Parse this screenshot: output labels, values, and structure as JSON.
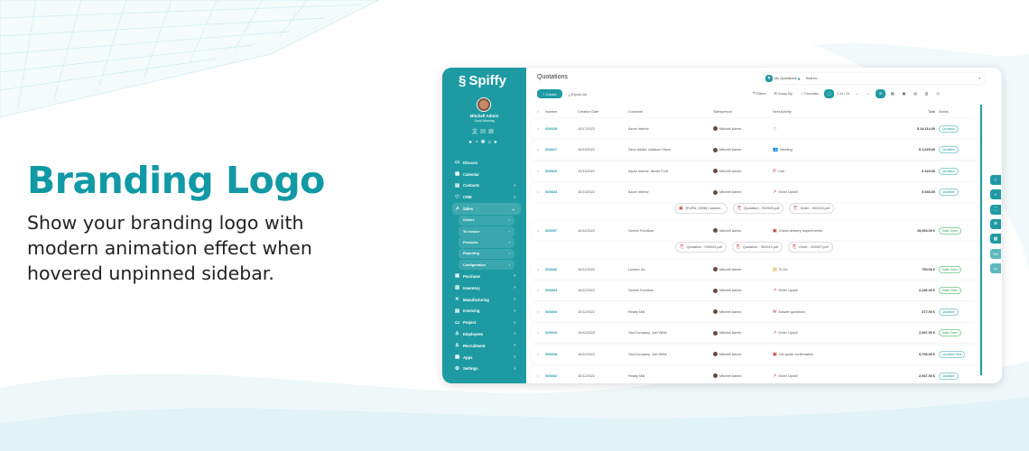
{
  "hero": {
    "title": "Branding Logo",
    "text": "Show your branding logo with modern animation effect when hovered unpinned sidebar."
  },
  "colors": {
    "accent": "#1e9ba2",
    "title": "#1199a5"
  },
  "sidebar": {
    "logo": "Spiffy",
    "user": "Mitchell Admin",
    "greeting": "Good Morning",
    "items": [
      {
        "label": "Discuss",
        "icon": "chat-icon"
      },
      {
        "label": "Calendar",
        "icon": "calendar-icon"
      },
      {
        "label": "Contacts",
        "icon": "contacts-icon",
        "arrow": true
      },
      {
        "label": "CRM",
        "icon": "handshake-icon",
        "arrow": true
      },
      {
        "label": "Sales",
        "icon": "chart-icon",
        "arrow": true,
        "open": true
      }
    ],
    "sub": [
      "Orders",
      "To Invoice",
      "Products",
      "Reporting",
      "Configuration"
    ],
    "items2": [
      {
        "label": "Purchase",
        "icon": "cart-icon"
      },
      {
        "label": "Inventory",
        "icon": "box-icon"
      },
      {
        "label": "Manufacturing",
        "icon": "tools-icon"
      },
      {
        "label": "Invoicing",
        "icon": "invoice-icon"
      },
      {
        "label": "Project",
        "icon": "project-icon"
      },
      {
        "label": "Employees",
        "icon": "people-icon"
      },
      {
        "label": "Recruitment",
        "icon": "recruit-icon"
      },
      {
        "label": "Apps",
        "icon": "apps-icon"
      },
      {
        "label": "Settings",
        "icon": "gear-icon"
      }
    ]
  },
  "main": {
    "title": "Quotations",
    "create": "+ Create",
    "export": "Export All",
    "facet": "My Quotations",
    "search_placeholder": "Search...",
    "filters": "Filters",
    "group_by": "Group By",
    "favorites": "Favorites",
    "pager": "1-11 / 11",
    "columns": [
      "Number",
      "Creation Date",
      "Customer",
      "Salesperson",
      "Next Activity",
      "Total",
      "Status"
    ],
    "rows": [
      {
        "type": "row",
        "number": "S00028",
        "date": "10/17/2022",
        "customer": "Azure Interior",
        "salesperson": "Mitchell Admin",
        "activity": "",
        "total": "$ 24,114.00",
        "status": "Quotation"
      },
      {
        "type": "row",
        "number": "S00027",
        "date": "10/13/2022",
        "customer": "Deco Addict, Addison Olson",
        "salesperson": "Mitchell Admin",
        "activity": "Meeting",
        "total": "$ 2,025.00",
        "status": "Quotation"
      },
      {
        "type": "row",
        "number": "S00026",
        "date": "10/13/2022",
        "customer": "Azure Interior, Nicole Ford",
        "salesperson": "Mitchell Admin",
        "activity": "Call",
        "total": "$ 320.00",
        "status": "Quotation"
      },
      {
        "type": "row",
        "number": "S00023",
        "date": "10/13/2022",
        "customer": "Azure Interior",
        "salesperson": "Mitchell Admin",
        "activity": "Order Upsell",
        "total": "$ 546.00",
        "status": "Quotation"
      },
      {
        "type": "att",
        "files": [
          "[FURN_0096] Customi...",
          "Quotation - S00023.pdf",
          "Order - S00015.pdf"
        ]
      },
      {
        "type": "row",
        "number": "S00007",
        "date": "10/12/2022",
        "customer": "Gemini Furniture",
        "salesperson": "Mitchell Admin",
        "activity": "Check delivery requirements",
        "total": "15,060.00 €",
        "status": "Sales Order"
      },
      {
        "type": "att",
        "files": [
          "Quotation - S00023.pdf",
          "Quotation - S00010.pdf",
          "Order - S00007.pdf"
        ]
      },
      {
        "type": "row",
        "number": "S00006",
        "date": "10/12/2022",
        "customer": "Lumber Inc",
        "salesperson": "Mitchell Admin",
        "activity": "To Do",
        "total": "750.00 €",
        "status": "Sales Order"
      },
      {
        "type": "row",
        "number": "S00004",
        "date": "10/12/2022",
        "customer": "Gemini Furniture",
        "salesperson": "Mitchell Admin",
        "activity": "Order Upsell",
        "total": "2,240.00 €",
        "status": "Sales Order"
      },
      {
        "type": "row",
        "number": "S00003",
        "date": "10/12/2022",
        "customer": "Ready Mat",
        "salesperson": "Mitchell Admin",
        "activity": "Answer questions",
        "total": "377.50 €",
        "status": "Quotation"
      },
      {
        "type": "row",
        "number": "S00019",
        "date": "10/12/2022",
        "customer": "YourCompany, Joel Willis",
        "salesperson": "Mitchell Admin",
        "activity": "Order Upsell",
        "total": "2,947.50 €",
        "status": "Sales Order"
      },
      {
        "type": "row",
        "number": "S00018",
        "date": "10/12/2022",
        "customer": "YourCompany, Joel Willis",
        "salesperson": "Mitchell Admin",
        "activity": "Get quote confirmation",
        "total": "9,705.00 €",
        "status": "Quotation Sent"
      },
      {
        "type": "row",
        "number": "S00002",
        "date": "10/12/2022",
        "customer": "Ready Mat",
        "salesperson": "Mitchell Admin",
        "activity": "Order Upsell",
        "total": "2,947.50 €",
        "status": "Quotation"
      }
    ]
  },
  "side_buttons": [
    "star-icon",
    "search-icon",
    "expand-icon",
    "zoom-icon",
    "grid-icon",
    "Sw",
    "Le"
  ]
}
